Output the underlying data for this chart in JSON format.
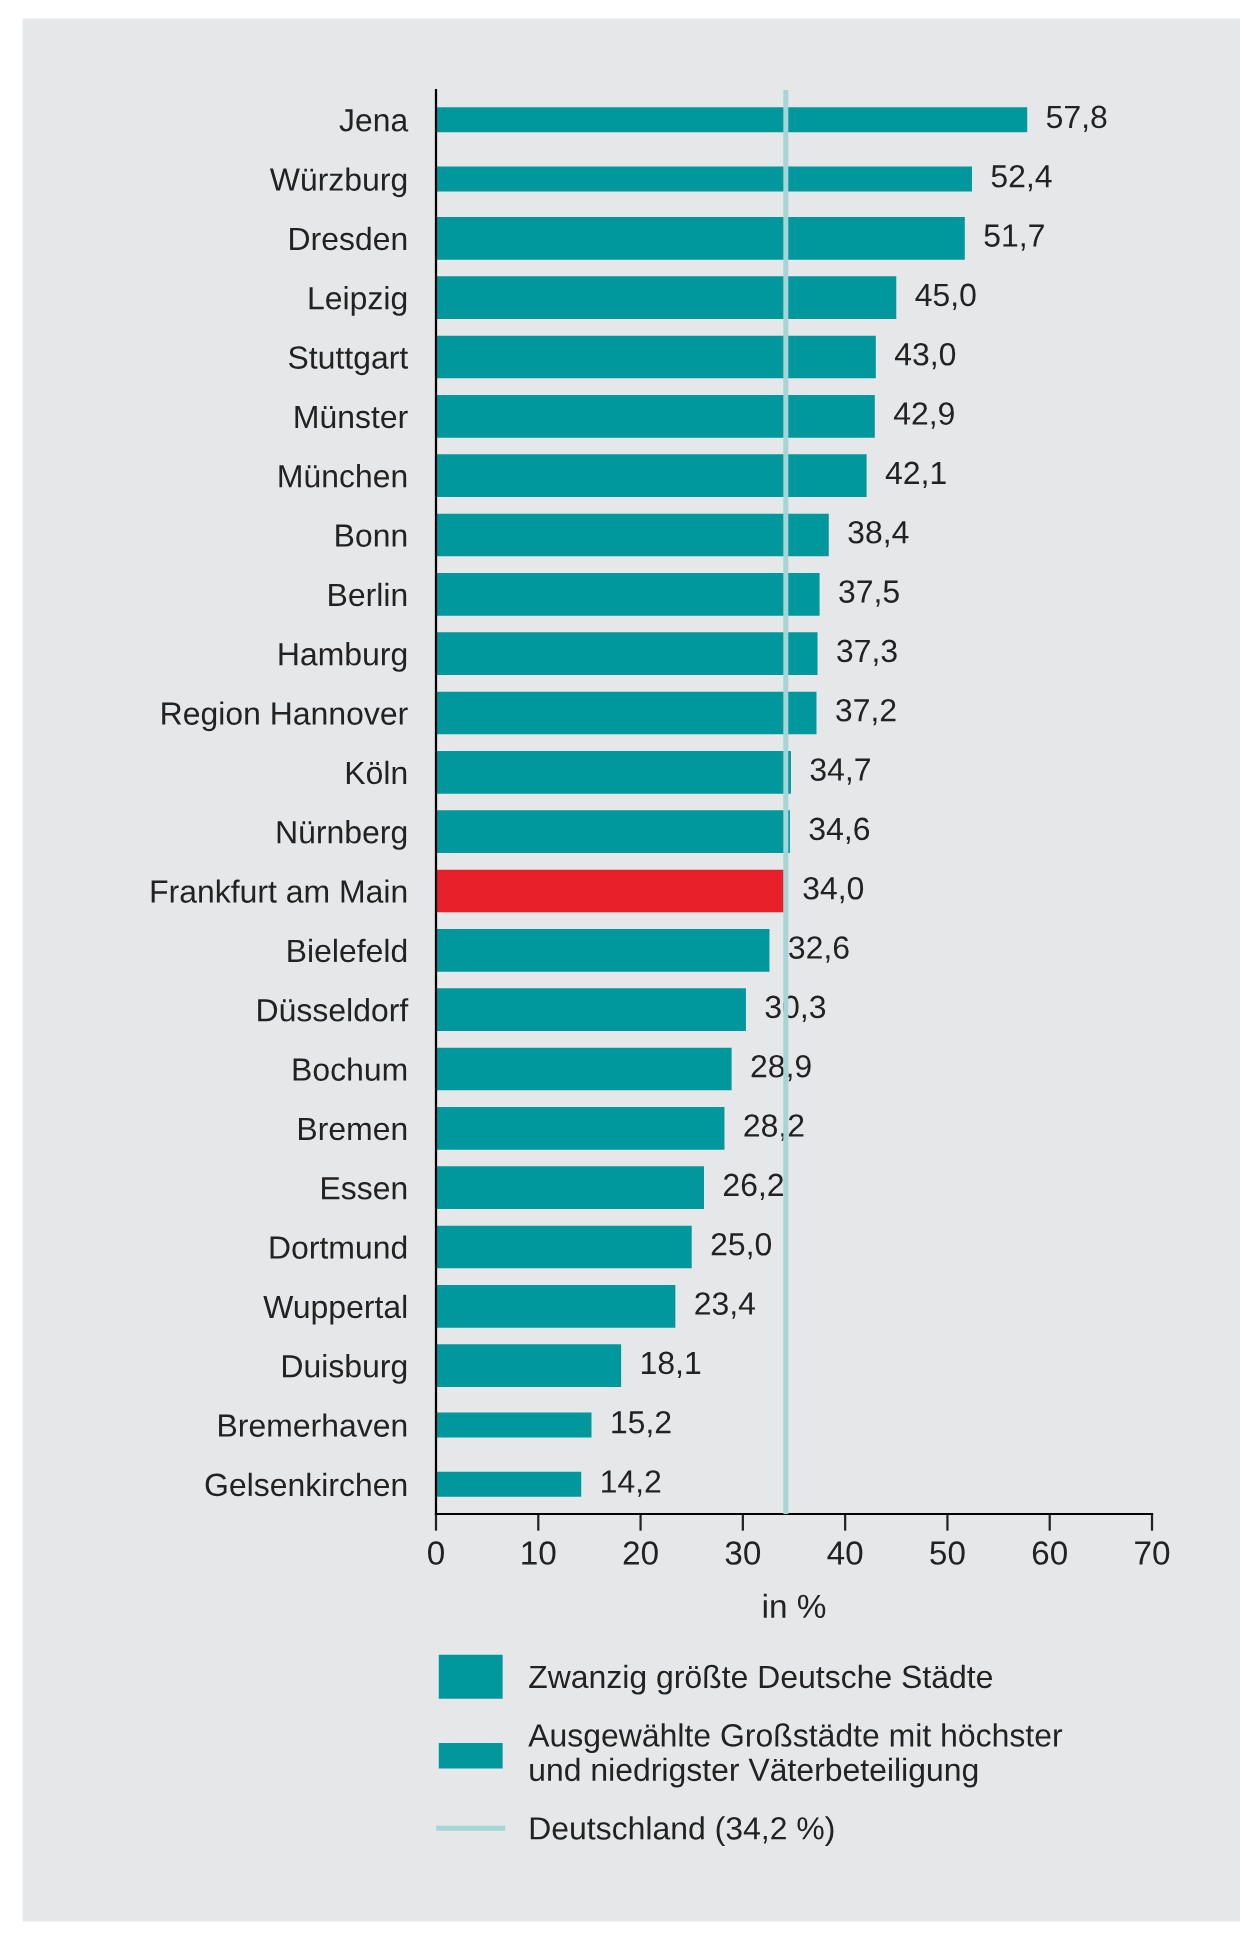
{
  "chart_data": {
    "type": "bar",
    "orientation": "horizontal",
    "xlabel": "in %",
    "categories": [
      "Jena",
      "Würzburg",
      "Dresden",
      "Leipzig",
      "Stuttgart",
      "Münster",
      "München",
      "Bonn",
      "Berlin",
      "Hamburg",
      "Region Hannover",
      "Köln",
      "Nürnberg",
      "Frankfurt am Main",
      "Bielefeld",
      "Düsseldorf",
      "Bochum",
      "Bremen",
      "Essen",
      "Dortmund",
      "Wuppertal",
      "Duisburg",
      "Bremerhaven",
      "Gelsenkirchen"
    ],
    "series": [
      {
        "name": "Zwanzig größte Deutsche Städte",
        "color": "#00979d",
        "values": [
          null,
          null,
          51.7,
          45.0,
          43.0,
          42.9,
          42.1,
          38.4,
          37.5,
          37.3,
          37.2,
          34.7,
          34.6,
          34.0,
          32.6,
          30.3,
          28.9,
          28.2,
          26.2,
          25.0,
          23.4,
          18.1,
          null,
          null
        ],
        "colors": [
          "#00979d",
          "#00979d",
          "#00979d",
          "#00979d",
          "#00979d",
          "#00979d",
          "#00979d",
          "#00979d",
          "#00979d",
          "#00979d",
          "#00979d",
          "#00979d",
          "#00979d",
          "#e8202a",
          "#00979d",
          "#00979d",
          "#00979d",
          "#00979d",
          "#00979d",
          "#00979d",
          "#00979d",
          "#00979d",
          "#00979d",
          "#00979d"
        ],
        "value_labels": [
          null,
          null,
          "51,7",
          "45,0",
          "43,0",
          "42,9",
          "42,1",
          "38,4",
          "37,5",
          "37,3",
          "37,2",
          "34,7",
          "34,6",
          "34,0",
          "32,6",
          "30,3",
          "28,9",
          "28,2",
          "26,2",
          "25,0",
          "23,4",
          "18,1",
          null,
          null
        ]
      },
      {
        "name": "Ausgewählte Großstädte mit höchster\nund niedrigster Väterbeteiligung",
        "color": "#00979d",
        "values": [
          57.8,
          52.4,
          null,
          null,
          null,
          null,
          null,
          null,
          null,
          null,
          null,
          null,
          null,
          null,
          null,
          null,
          null,
          null,
          null,
          null,
          null,
          null,
          15.2,
          14.2
        ],
        "value_labels": [
          "57,8",
          "52,4",
          null,
          null,
          null,
          null,
          null,
          null,
          null,
          null,
          null,
          null,
          null,
          null,
          null,
          null,
          null,
          null,
          null,
          null,
          null,
          null,
          "15,2",
          "14,2"
        ]
      }
    ],
    "ref_lines": [
      {
        "axis": "x",
        "value": 34.2,
        "label": "Deutschland (34,2 %)",
        "color": "#a6d5d8"
      }
    ],
    "xlim": [
      0,
      70
    ],
    "xticks": [
      0,
      10,
      20,
      30,
      40,
      50,
      60,
      70
    ],
    "grid": false,
    "legend": "bottom"
  }
}
